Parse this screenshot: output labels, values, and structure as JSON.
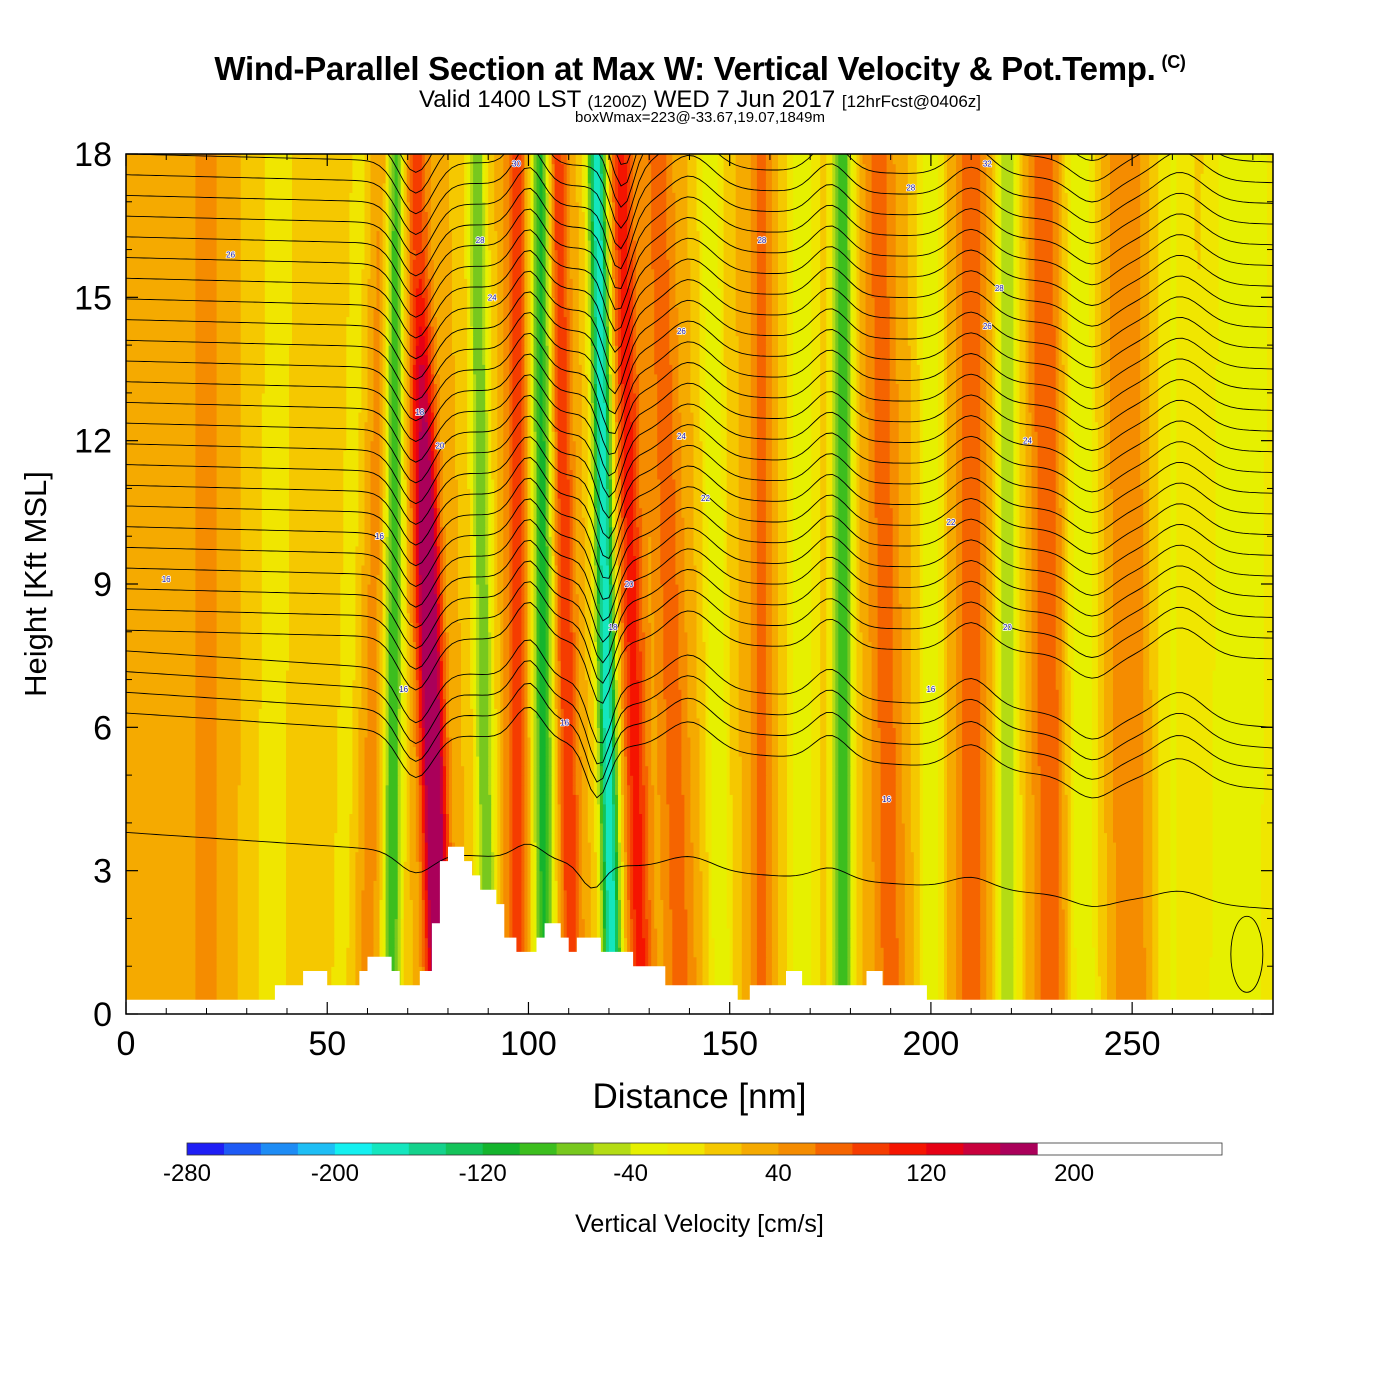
{
  "title": {
    "main": "Wind-Parallel Section at Max W: Vertical Velocity & Pot.Temp.",
    "copyright": "(C)",
    "valid_pre": "Valid 1400 LST",
    "valid_zulu": "(1200Z)",
    "valid_post": "WED 7 Jun 2017",
    "forecast": "[12hrFcst@0406z]",
    "box_info": "boxWmax=223@-33.67,19.07,1849m"
  },
  "colorbar": {
    "label": "Vertical Velocity [cm/s]",
    "tick_labels": [
      "-280",
      "-200",
      "-120",
      "-40",
      "40",
      "120",
      "200"
    ],
    "tick_values": [
      -280,
      -200,
      -120,
      -40,
      40,
      120,
      200
    ],
    "min": -280,
    "max": 260,
    "step": 20,
    "colors": [
      "#1e1ef5",
      "#1e5af5",
      "#1e8cf5",
      "#1ebef5",
      "#14f0f0",
      "#14e6be",
      "#14d28c",
      "#14c35a",
      "#14b42d",
      "#3cbe1e",
      "#78c81e",
      "#b4dc14",
      "#e6f000",
      "#f0e600",
      "#f5c800",
      "#f5aa00",
      "#f58c00",
      "#f56400",
      "#f53c00",
      "#f51400",
      "#e60014",
      "#c8003c",
      "#aa005a"
    ]
  },
  "chart_data": {
    "type": "heatmap",
    "title": "Wind-Parallel Section at Max W: Vertical Velocity & Pot.Temp.",
    "xlabel": "Distance [nm]",
    "ylabel": "Height [Kft MSL]",
    "xlim": [
      0,
      285
    ],
    "ylim": [
      0,
      18
    ],
    "x_ticks": [
      0,
      50,
      100,
      150,
      200,
      250
    ],
    "x_tick_labels": [
      "0",
      "50",
      "100",
      "150",
      "200",
      "250"
    ],
    "y_ticks": [
      0,
      3,
      6,
      9,
      12,
      15,
      18
    ],
    "y_tick_labels": [
      "0",
      "3",
      "6",
      "9",
      "12",
      "15",
      "18"
    ],
    "units": "cm/s",
    "vertical_velocity_bands": [
      {
        "x_base": 20,
        "x_top": 20,
        "w": 4,
        "peak": 30
      },
      {
        "x_base": 36,
        "x_top": 38,
        "w": 4,
        "peak": -40
      },
      {
        "x_base": 53,
        "x_top": 58,
        "w": 3,
        "peak": -30
      },
      {
        "x_base": 60,
        "x_top": 64,
        "w": 3,
        "peak": 30
      },
      {
        "x_base": 66,
        "x_top": 67,
        "w": 2.4,
        "peak": -120
      },
      {
        "x_base": 78,
        "x_top": 72,
        "w": 3,
        "peak": 200
      },
      {
        "x_base": 90,
        "x_top": 87,
        "w": 2.4,
        "peak": -100
      },
      {
        "x_base": 97,
        "x_top": 97,
        "w": 2.8,
        "peak": 70
      },
      {
        "x_base": 104,
        "x_top": 103,
        "w": 2.6,
        "peak": -130
      },
      {
        "x_base": 111,
        "x_top": 107,
        "w": 2.6,
        "peak": 80
      },
      {
        "x_base": 121,
        "x_top": 117,
        "w": 2.4,
        "peak": -200
      },
      {
        "x_base": 128,
        "x_top": 123,
        "w": 3,
        "peak": 90
      },
      {
        "x_base": 138,
        "x_top": 132,
        "w": 4,
        "peak": 50
      },
      {
        "x_base": 148,
        "x_top": 145,
        "w": 3,
        "peak": -60
      },
      {
        "x_base": 158,
        "x_top": 158,
        "w": 3,
        "peak": 50
      },
      {
        "x_base": 168,
        "x_top": 168,
        "w": 4,
        "peak": -60
      },
      {
        "x_base": 178,
        "x_top": 178,
        "w": 2.6,
        "peak": -120
      },
      {
        "x_base": 190,
        "x_top": 187,
        "w": 4,
        "peak": 50
      },
      {
        "x_base": 200,
        "x_top": 200,
        "w": 3,
        "peak": -60
      },
      {
        "x_base": 210,
        "x_top": 210,
        "w": 4,
        "peak": 60
      },
      {
        "x_base": 219,
        "x_top": 219,
        "w": 3,
        "peak": -80
      },
      {
        "x_base": 230,
        "x_top": 228,
        "w": 4,
        "peak": 60
      },
      {
        "x_base": 238,
        "x_top": 237,
        "w": 4,
        "peak": -60
      },
      {
        "x_base": 250,
        "x_top": 248,
        "w": 5,
        "peak": 40
      },
      {
        "x_base": 260,
        "x_top": 260,
        "w": 5,
        "peak": -40
      },
      {
        "x_base": 273,
        "x_top": 275,
        "w": 7,
        "peak": -50
      },
      {
        "x_base": 282,
        "x_top": 283,
        "w": 5,
        "peak": -30
      }
    ],
    "terrain_kft": [
      [
        0,
        0.3
      ],
      [
        37,
        0.3
      ],
      [
        37,
        0.6
      ],
      [
        44,
        0.6
      ],
      [
        44,
        0.9
      ],
      [
        50,
        0.9
      ],
      [
        50,
        0.6
      ],
      [
        58,
        0.6
      ],
      [
        58,
        0.9
      ],
      [
        60,
        0.9
      ],
      [
        60,
        1.2
      ],
      [
        66,
        1.2
      ],
      [
        66,
        0.9
      ],
      [
        68,
        0.9
      ],
      [
        68,
        0.6
      ],
      [
        73,
        0.6
      ],
      [
        73,
        0.9
      ],
      [
        76,
        0.9
      ],
      [
        76,
        1.9
      ],
      [
        78,
        1.9
      ],
      [
        78,
        3.2
      ],
      [
        80,
        3.2
      ],
      [
        80,
        3.5
      ],
      [
        84,
        3.5
      ],
      [
        84,
        3.2
      ],
      [
        86,
        3.2
      ],
      [
        86,
        2.9
      ],
      [
        88,
        2.9
      ],
      [
        88,
        2.6
      ],
      [
        92,
        2.6
      ],
      [
        92,
        2.3
      ],
      [
        94,
        2.3
      ],
      [
        94,
        1.6
      ],
      [
        97,
        1.6
      ],
      [
        97,
        1.3
      ],
      [
        102,
        1.3
      ],
      [
        102,
        1.6
      ],
      [
        104,
        1.6
      ],
      [
        104,
        1.9
      ],
      [
        108,
        1.9
      ],
      [
        108,
        1.6
      ],
      [
        110,
        1.6
      ],
      [
        110,
        1.3
      ],
      [
        112,
        1.3
      ],
      [
        112,
        1.6
      ],
      [
        118,
        1.6
      ],
      [
        118,
        1.3
      ],
      [
        126,
        1.3
      ],
      [
        126,
        1.0
      ],
      [
        134,
        1.0
      ],
      [
        134,
        0.6
      ],
      [
        152,
        0.6
      ],
      [
        152,
        0.3
      ],
      [
        155,
        0.3
      ],
      [
        155,
        0.6
      ],
      [
        164,
        0.6
      ],
      [
        164,
        0.9
      ],
      [
        168,
        0.9
      ],
      [
        168,
        0.6
      ],
      [
        184,
        0.6
      ],
      [
        184,
        0.9
      ],
      [
        188,
        0.9
      ],
      [
        188,
        0.6
      ],
      [
        199,
        0.6
      ],
      [
        199,
        0.3
      ],
      [
        285,
        0.3
      ]
    ],
    "potential_temperature_contours": {
      "units": "C",
      "contour_labels": [
        {
          "text": "16",
          "x": 10,
          "y": 9.1
        },
        {
          "text": "16",
          "x": 63,
          "y": 10.0
        },
        {
          "text": "16",
          "x": 69,
          "y": 6.8
        },
        {
          "text": "16",
          "x": 109,
          "y": 6.1
        },
        {
          "text": "16",
          "x": 200,
          "y": 6.8
        },
        {
          "text": "16",
          "x": 189,
          "y": 4.5
        },
        {
          "text": "18",
          "x": 121,
          "y": 8.1
        },
        {
          "text": "18",
          "x": 73,
          "y": 12.6
        },
        {
          "text": "20",
          "x": 78,
          "y": 11.9
        },
        {
          "text": "20",
          "x": 125,
          "y": 9.0
        },
        {
          "text": "20",
          "x": 219,
          "y": 8.1
        },
        {
          "text": "22",
          "x": 144,
          "y": 10.8
        },
        {
          "text": "22",
          "x": 205,
          "y": 10.3
        },
        {
          "text": "24",
          "x": 138,
          "y": 12.1
        },
        {
          "text": "24",
          "x": 224,
          "y": 12.0
        },
        {
          "text": "24",
          "x": 91,
          "y": 15.0
        },
        {
          "text": "26",
          "x": 26,
          "y": 15.9
        },
        {
          "text": "26",
          "x": 138,
          "y": 14.3
        },
        {
          "text": "26",
          "x": 214,
          "y": 14.4
        },
        {
          "text": "28",
          "x": 88,
          "y": 16.2
        },
        {
          "text": "28",
          "x": 158,
          "y": 16.2
        },
        {
          "text": "28",
          "x": 195,
          "y": 17.3
        },
        {
          "text": "28",
          "x": 217,
          "y": 15.2
        },
        {
          "text": "30",
          "x": 97,
          "y": 17.8
        },
        {
          "text": "32",
          "x": 214,
          "y": 17.8
        }
      ]
    }
  }
}
